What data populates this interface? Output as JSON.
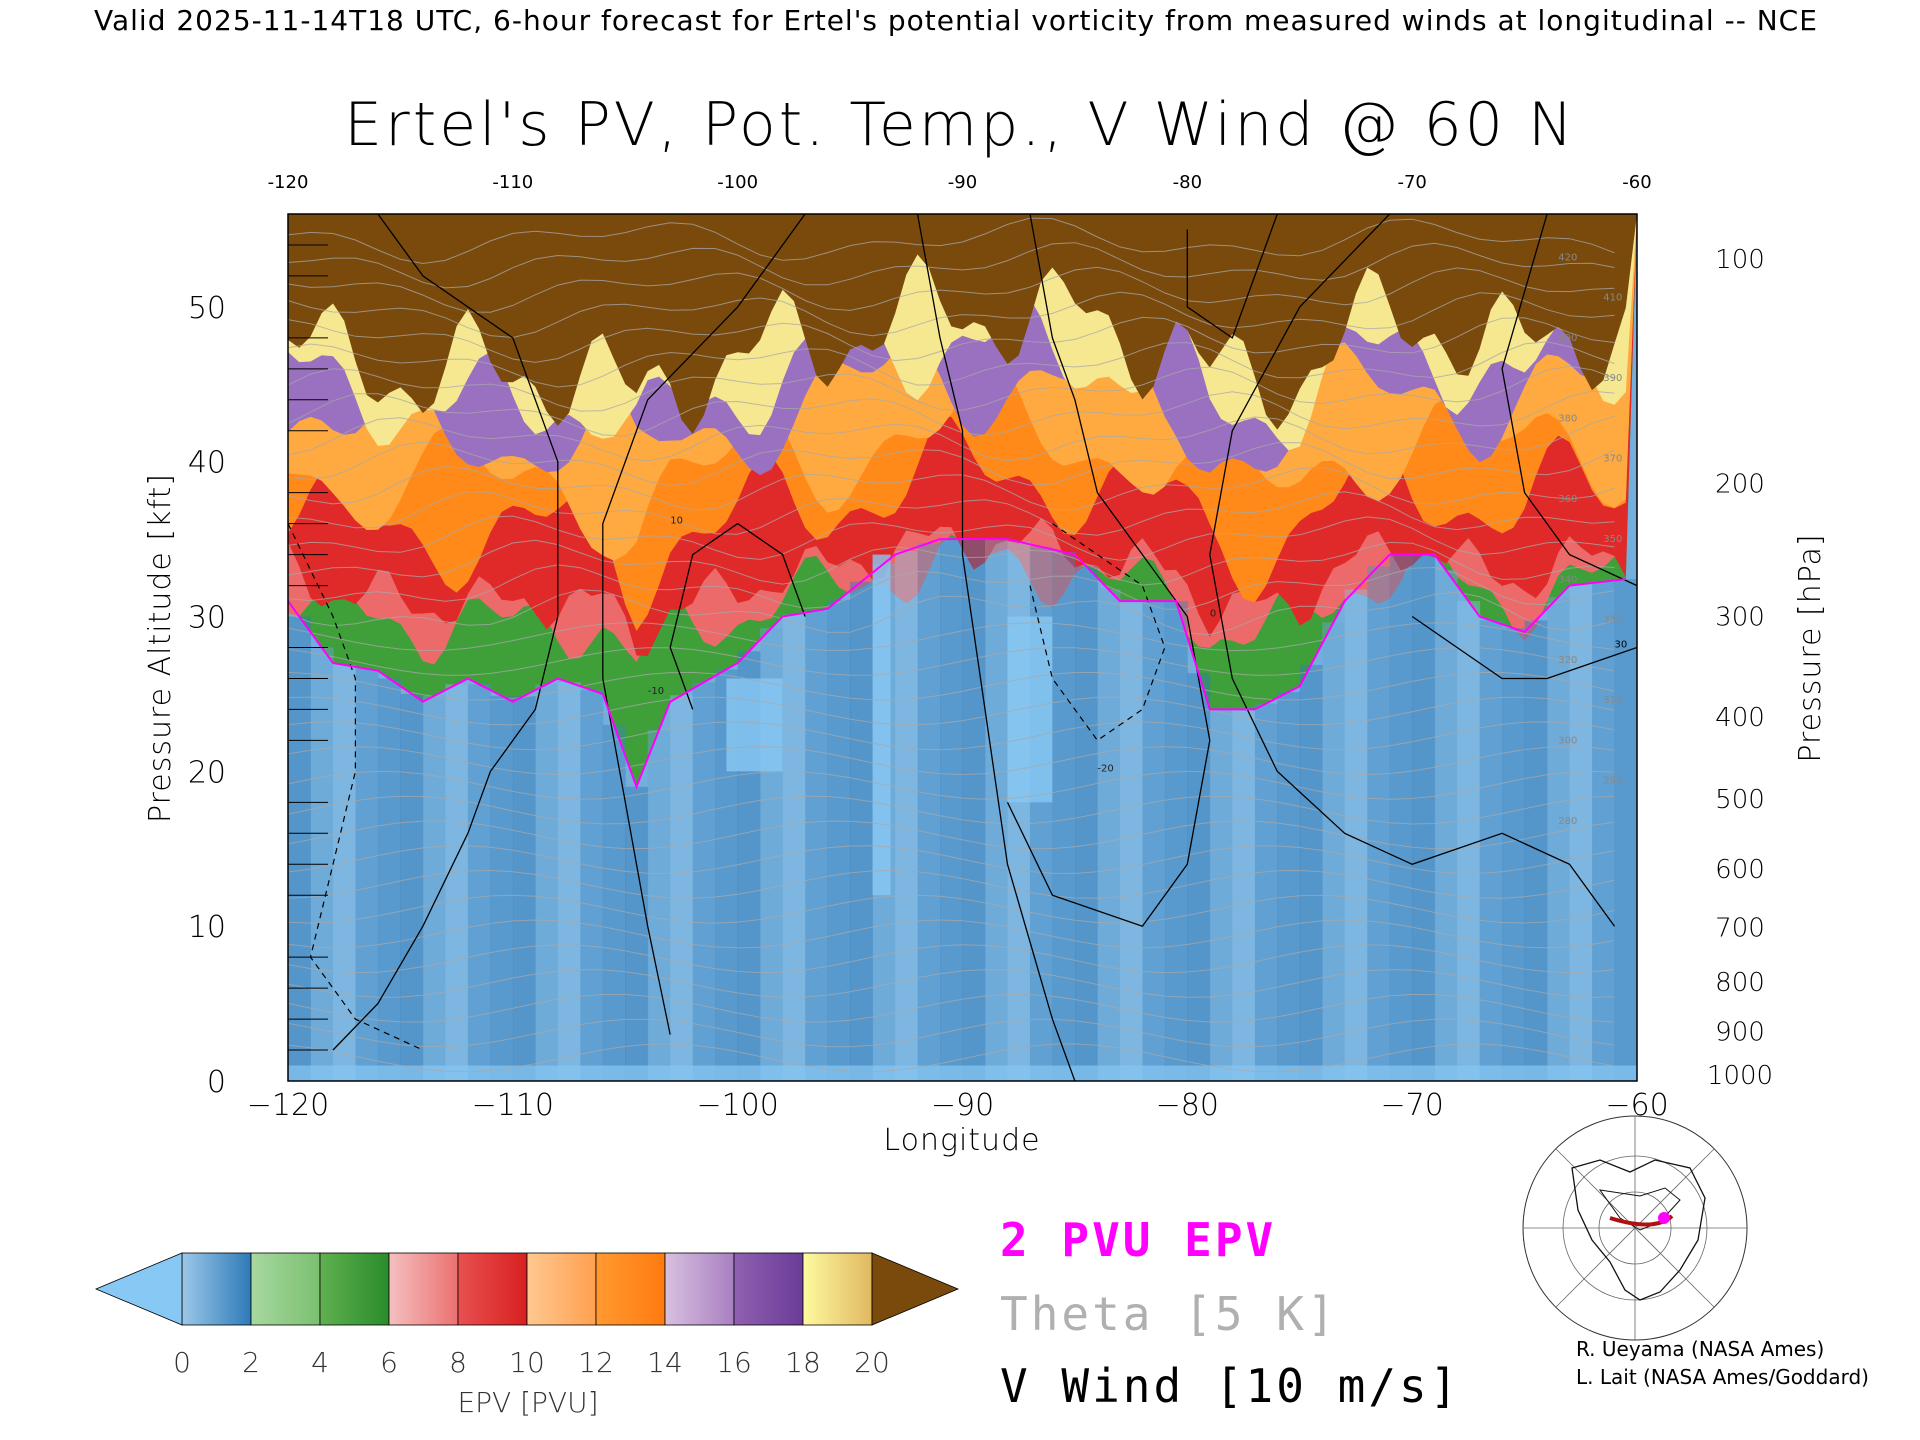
{
  "header": {
    "text": "Valid 2025-11-14T18 UTC, 6-hour forecast for Ertel's potential vorticity from measured winds at longitudinal -- NCE"
  },
  "title": "Ertel's PV, Pot. Temp., V Wind @ 60 N",
  "legend": {
    "epv_label": "2 PVU EPV",
    "theta_label": "Theta [5 K]",
    "vwind_label": "V Wind [10 m/s]",
    "colors": {
      "epv": "#ff00ff",
      "theta": "#a8a8a8",
      "vwind": "#000000"
    }
  },
  "credits": {
    "line1": "R. Ueyama (NASA Ames)",
    "line2": "L. Lait (NASA Ames/Goddard)"
  },
  "chart_data": {
    "type": "heatmap",
    "title": "Ertel's PV, Pot. Temp., V Wind @ 60 N",
    "xlabel": "Longitude",
    "ylabel": "Pressure Altitude [kft]",
    "y2label": "Pressure [hPa]",
    "xlim": [
      -120,
      -60
    ],
    "ylim": [
      0,
      56
    ],
    "x_ticks": [
      -120,
      -110,
      -100,
      -90,
      -80,
      -70,
      -60
    ],
    "x_tick_labels": [
      "−120",
      "−110",
      "−100",
      "−90",
      "−80",
      "−70",
      "−60"
    ],
    "top_tick_labels": [
      "-120",
      "-110",
      "-100",
      "-90",
      "-80",
      "-70",
      "-60"
    ],
    "y_ticks": [
      0,
      10,
      20,
      30,
      40,
      50
    ],
    "y_tick_labels": [
      "0",
      "10",
      "20",
      "30",
      "40",
      "50"
    ],
    "pressure_ticks": [
      {
        "hpa": 1000,
        "kft": 0.4,
        "label": "1000"
      },
      {
        "hpa": 900,
        "kft": 3.2,
        "label": "900"
      },
      {
        "hpa": 800,
        "kft": 6.4,
        "label": "800"
      },
      {
        "hpa": 700,
        "kft": 9.9,
        "label": "700"
      },
      {
        "hpa": 600,
        "kft": 13.7,
        "label": "600"
      },
      {
        "hpa": 500,
        "kft": 18.2,
        "label": "500"
      },
      {
        "hpa": 400,
        "kft": 23.5,
        "label": "400"
      },
      {
        "hpa": 300,
        "kft": 30.0,
        "label": "300"
      },
      {
        "hpa": 200,
        "kft": 38.6,
        "label": "200"
      },
      {
        "hpa": 100,
        "kft": 53.1,
        "label": "100"
      }
    ],
    "colorbar": {
      "label": "EPV [PVU]",
      "tick_labels": [
        "0",
        "2",
        "4",
        "6",
        "8",
        "10",
        "12",
        "14",
        "16",
        "18",
        "20"
      ],
      "under_color": "#88c8f4",
      "over_color": "#7a4a0c",
      "bins": [
        {
          "from": 0,
          "to": 2,
          "colors": [
            "#9cc8e8",
            "#2e7ab8"
          ]
        },
        {
          "from": 2,
          "to": 4,
          "colors": [
            "#a8d8a0",
            "#7ac070"
          ]
        },
        {
          "from": 4,
          "to": 6,
          "colors": [
            "#60b050",
            "#2a8c2a"
          ]
        },
        {
          "from": 6,
          "to": 8,
          "colors": [
            "#f4c0c0",
            "#ec7070"
          ]
        },
        {
          "from": 8,
          "to": 10,
          "colors": [
            "#e85050",
            "#d82020"
          ]
        },
        {
          "from": 10,
          "to": 12,
          "colors": [
            "#ffc890",
            "#ffa050"
          ]
        },
        {
          "from": 12,
          "to": 14,
          "colors": [
            "#ff9a30",
            "#ff7a10"
          ]
        },
        {
          "from": 14,
          "to": 16,
          "colors": [
            "#d8c0e0",
            "#a880c0"
          ]
        },
        {
          "from": 16,
          "to": 18,
          "colors": [
            "#9060b0",
            "#6a3c98"
          ]
        },
        {
          "from": 18,
          "to": 20,
          "colors": [
            "#fffaa0",
            "#e0b860"
          ]
        }
      ]
    },
    "tropopause_2pvu_kft": [
      {
        "lon": -120,
        "kft": 31
      },
      {
        "lon": -118,
        "kft": 27
      },
      {
        "lon": -116,
        "kft": 26.5
      },
      {
        "lon": -114,
        "kft": 24.5
      },
      {
        "lon": -112,
        "kft": 26
      },
      {
        "lon": -110,
        "kft": 24.5
      },
      {
        "lon": -108,
        "kft": 26
      },
      {
        "lon": -106,
        "kft": 25
      },
      {
        "lon": -104.5,
        "kft": 19
      },
      {
        "lon": -103,
        "kft": 24.5
      },
      {
        "lon": -100,
        "kft": 27
      },
      {
        "lon": -98,
        "kft": 30
      },
      {
        "lon": -96,
        "kft": 30.5
      },
      {
        "lon": -93,
        "kft": 34
      },
      {
        "lon": -91,
        "kft": 35
      },
      {
        "lon": -88,
        "kft": 35
      },
      {
        "lon": -85,
        "kft": 34
      },
      {
        "lon": -83,
        "kft": 31
      },
      {
        "lon": -80.5,
        "kft": 31
      },
      {
        "lon": -79,
        "kft": 24
      },
      {
        "lon": -77,
        "kft": 24
      },
      {
        "lon": -75,
        "kft": 25.5
      },
      {
        "lon": -73,
        "kft": 31
      },
      {
        "lon": -71,
        "kft": 34
      },
      {
        "lon": -69,
        "kft": 34
      },
      {
        "lon": -67,
        "kft": 30
      },
      {
        "lon": -65,
        "kft": 29
      },
      {
        "lon": -63,
        "kft": 32
      },
      {
        "lon": -60,
        "kft": 32.5
      }
    ],
    "contour_labels": {
      "theta": [
        "420",
        "410",
        "400",
        "390",
        "380",
        "370",
        "360",
        "350",
        "340",
        "330",
        "320",
        "310",
        "300",
        "290",
        "280"
      ],
      "vwind": [
        "10",
        "0",
        "-10",
        "-20",
        "30"
      ]
    },
    "grid": false
  },
  "map_inset": {
    "marker_color": "#ff00ff",
    "section_color": "#b01010"
  }
}
